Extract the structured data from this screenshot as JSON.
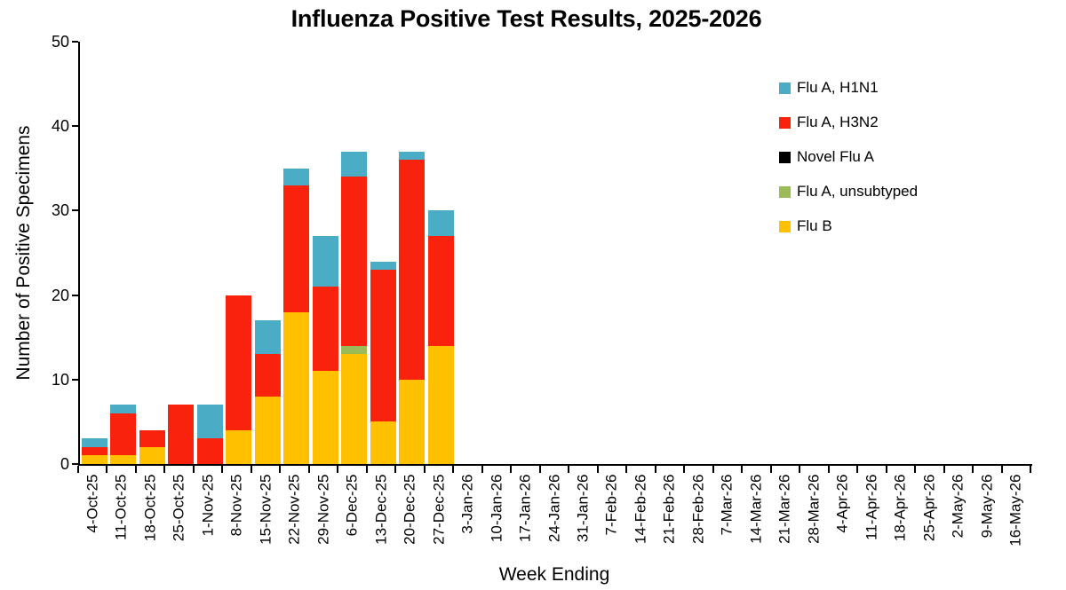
{
  "chart_data": {
    "type": "bar",
    "stacked": true,
    "title": "Influenza Positive Test Results, 2025-2026",
    "xlabel": "Week Ending",
    "ylabel": "Number of Positive Specimens",
    "ylim": [
      0,
      50
    ],
    "yticks": [
      0,
      10,
      20,
      30,
      40,
      50
    ],
    "grid": false,
    "legend_position": "upper right",
    "categories": [
      "4-Oct-25",
      "11-Oct-25",
      "18-Oct-25",
      "25-Oct-25",
      "1-Nov-25",
      "8-Nov-25",
      "15-Nov-25",
      "22-Nov-25",
      "29-Nov-25",
      "6-Dec-25",
      "13-Dec-25",
      "20-Dec-25",
      "27-Dec-25",
      "3-Jan-26",
      "10-Jan-26",
      "17-Jan-26",
      "24-Jan-26",
      "31-Jan-26",
      "7-Feb-26",
      "14-Feb-26",
      "21-Feb-26",
      "28-Feb-26",
      "7-Mar-26",
      "14-Mar-26",
      "21-Mar-26",
      "28-Mar-26",
      "4-Apr-26",
      "11-Apr-26",
      "18-Apr-26",
      "25-Apr-26",
      "2-May-26",
      "9-May-26",
      "16-May-26"
    ],
    "stack_order": "bottom-to-top",
    "series": [
      {
        "name": "Flu B",
        "color": "#FFC000",
        "values": [
          1,
          1,
          2,
          0,
          0,
          4,
          8,
          18,
          11,
          13,
          5,
          10,
          14,
          0,
          0,
          0,
          0,
          0,
          0,
          0,
          0,
          0,
          0,
          0,
          0,
          0,
          0,
          0,
          0,
          0,
          0,
          0,
          0
        ]
      },
      {
        "name": "Flu A, unsubtyped",
        "color": "#9BBB59",
        "values": [
          0,
          0,
          0,
          0,
          0,
          0,
          0,
          0,
          0,
          1,
          0,
          0,
          0,
          0,
          0,
          0,
          0,
          0,
          0,
          0,
          0,
          0,
          0,
          0,
          0,
          0,
          0,
          0,
          0,
          0,
          0,
          0,
          0
        ]
      },
      {
        "name": "Novel Flu A",
        "color": "#000000",
        "values": [
          0,
          0,
          0,
          0,
          0,
          0,
          0,
          0,
          0,
          0,
          0,
          0,
          0,
          0,
          0,
          0,
          0,
          0,
          0,
          0,
          0,
          0,
          0,
          0,
          0,
          0,
          0,
          0,
          0,
          0,
          0,
          0,
          0
        ]
      },
      {
        "name": "Flu A, H3N2",
        "color": "#F8220D",
        "values": [
          1,
          5,
          2,
          7,
          3,
          16,
          5,
          15,
          10,
          20,
          18,
          26,
          13,
          0,
          0,
          0,
          0,
          0,
          0,
          0,
          0,
          0,
          0,
          0,
          0,
          0,
          0,
          0,
          0,
          0,
          0,
          0,
          0
        ]
      },
      {
        "name": "Flu A, H1N1",
        "color": "#4BACC6",
        "values": [
          1,
          1,
          0,
          0,
          4,
          0,
          4,
          2,
          6,
          3,
          1,
          1,
          3,
          0,
          0,
          0,
          0,
          0,
          0,
          0,
          0,
          0,
          0,
          0,
          0,
          0,
          0,
          0,
          0,
          0,
          0,
          0,
          0
        ]
      }
    ],
    "totals": [
      3,
      7,
      4,
      7,
      7,
      20,
      17,
      35,
      27,
      37,
      24,
      37,
      30,
      0,
      0,
      0,
      0,
      0,
      0,
      0,
      0,
      0,
      0,
      0,
      0,
      0,
      0,
      0,
      0,
      0,
      0,
      0,
      0
    ]
  },
  "legend": {
    "items": [
      {
        "label": "Flu A, H1N1",
        "color": "#4BACC6"
      },
      {
        "label": "Flu A, H3N2",
        "color": "#F8220D"
      },
      {
        "label": "Novel Flu A",
        "color": "#000000"
      },
      {
        "label": "Flu A, unsubtyped",
        "color": "#9BBB59"
      },
      {
        "label": "Flu B",
        "color": "#FFC000"
      }
    ]
  }
}
